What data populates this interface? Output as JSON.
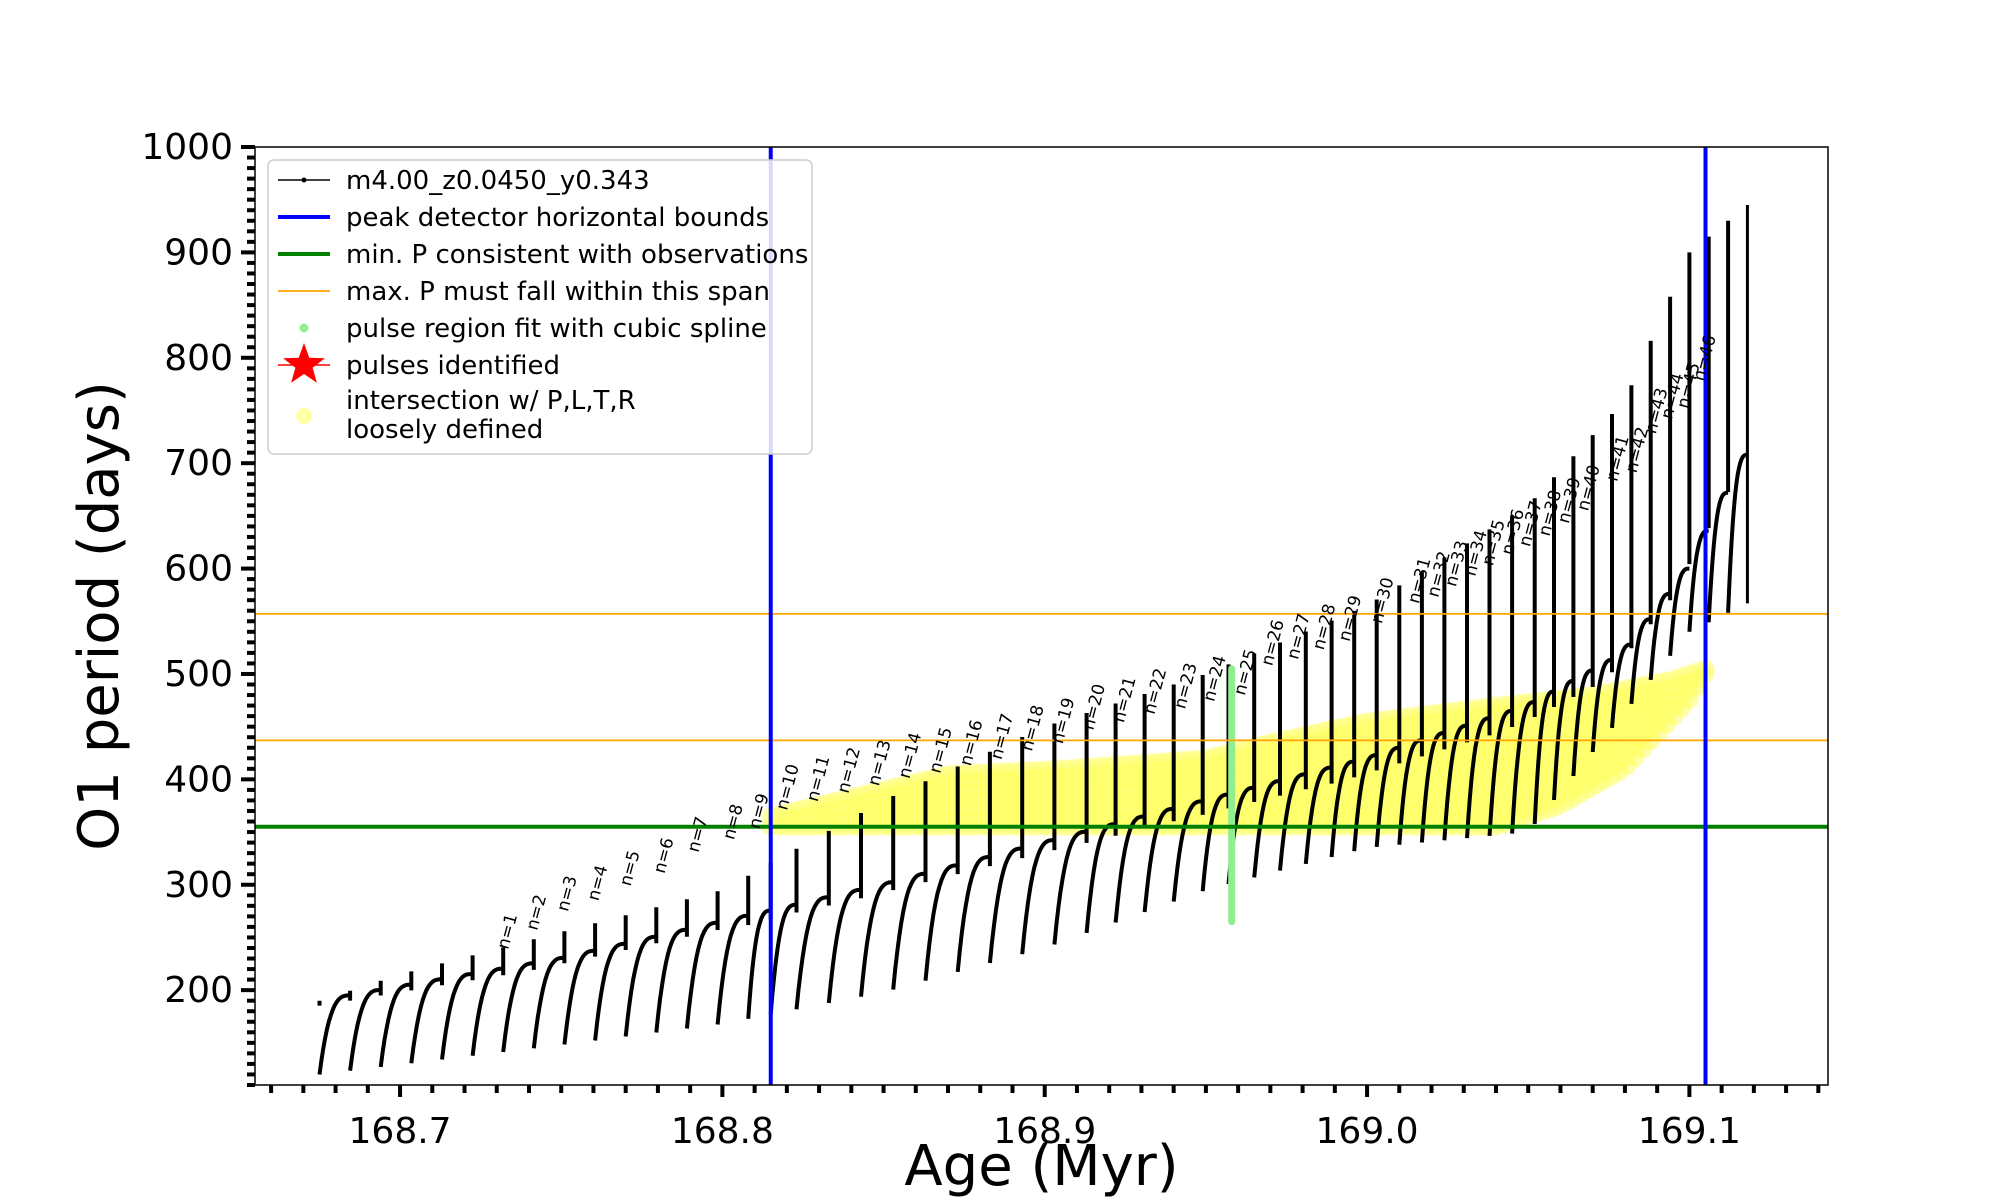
{
  "chart_data": {
    "type": "scatter",
    "xlabel": "Age (Myr)",
    "ylabel": "O1 period (days)",
    "xlim": [
      168.655,
      169.143
    ],
    "ylim": [
      110,
      1000
    ],
    "x_ticks": [
      168.7,
      168.8,
      168.9,
      169.0,
      169.1
    ],
    "x_tick_labels": [
      "168.7",
      "168.8",
      "168.9",
      "169.0",
      "169.1"
    ],
    "y_ticks": [
      200,
      300,
      400,
      500,
      600,
      700,
      800,
      900,
      1000
    ],
    "y_tick_labels": [
      "200",
      "300",
      "400",
      "500",
      "600",
      "700",
      "800",
      "900",
      "1000"
    ],
    "legend_position": "top-left",
    "legend": [
      {
        "label": "m4.00_z0.0450_y0.343",
        "marker": "line-dot",
        "color": "#000000"
      },
      {
        "label": "peak detector horizontal bounds",
        "marker": "thick-line",
        "color": "#0000ff"
      },
      {
        "label": "min. P consistent with observations",
        "marker": "thick-line",
        "color": "#008000"
      },
      {
        "label": "max. P must fall within this span",
        "marker": "thin-line",
        "color": "#ffa500"
      },
      {
        "label": "pulse region fit with cubic spline",
        "marker": "dot",
        "color": "#90ee90"
      },
      {
        "label": "pulses identified",
        "marker": "star",
        "color": "#ff0000"
      },
      {
        "label": "intersection w/ P,L,T,R",
        "label2": "loosely defined",
        "marker": "circle",
        "color": "#ffff66"
      }
    ],
    "vertical_lines": [
      {
        "x": 168.815,
        "color": "#0000ff",
        "name": "peak detector horizontal bounds"
      },
      {
        "x": 169.105,
        "color": "#0000ff",
        "name": "peak detector horizontal bounds"
      }
    ],
    "horizontal_lines": [
      {
        "y": 355,
        "color": "#008000",
        "name": "min. P consistent with observations"
      },
      {
        "y": 437,
        "color": "#ffa500",
        "name": "max. P must fall within this span"
      },
      {
        "y": 557,
        "color": "#ffa500",
        "name": "max. P must fall within this span"
      }
    ],
    "track_series": {
      "name": "m4.00_z0.0450_y0.343",
      "color": "#000000",
      "x_start": 168.675,
      "x_end": 169.12,
      "pulse_ages": [
        168.675,
        168.6845,
        168.694,
        168.7035,
        168.713,
        168.7225,
        168.732,
        168.7415,
        168.751,
        168.7605,
        168.77,
        168.7795,
        168.789,
        168.7985,
        168.808,
        168.815,
        168.823,
        168.833,
        168.843,
        168.853,
        168.863,
        168.873,
        168.883,
        168.893,
        168.903,
        168.913,
        168.922,
        168.931,
        168.94,
        168.949,
        168.957,
        168.965,
        168.973,
        168.981,
        168.989,
        168.996,
        169.003,
        169.01,
        169.017,
        169.024,
        169.031,
        169.038,
        169.045,
        169.052,
        169.058,
        169.064,
        169.07,
        169.076,
        169.082,
        169.088,
        169.094,
        169.1,
        169.106,
        169.112,
        169.118
      ],
      "baseline": [
        [
          168.675,
          190
        ],
        [
          168.75,
          230
        ],
        [
          168.8,
          265
        ],
        [
          168.85,
          300
        ],
        [
          168.9,
          340
        ],
        [
          168.95,
          380
        ],
        [
          169.0,
          420
        ],
        [
          169.05,
          470
        ],
        [
          169.08,
          520
        ],
        [
          169.1,
          600
        ],
        [
          169.12,
          720
        ]
      ],
      "pulse_min_base": [
        [
          168.675,
          120
        ],
        [
          168.75,
          148
        ],
        [
          168.8,
          168
        ],
        [
          168.85,
          198
        ],
        [
          168.9,
          240
        ],
        [
          168.95,
          295
        ],
        [
          169.0,
          335
        ],
        [
          169.05,
          350
        ],
        [
          169.1,
          540
        ],
        [
          169.12,
          570
        ]
      ],
      "pulse_max": [
        [
          168.675,
          190
        ],
        [
          168.7,
          215
        ],
        [
          168.75,
          255
        ],
        [
          168.8,
          295
        ],
        [
          168.85,
          380
        ],
        [
          168.9,
          450
        ],
        [
          168.95,
          500
        ],
        [
          169.0,
          565
        ],
        [
          169.05,
          660
        ],
        [
          169.08,
          760
        ],
        [
          169.1,
          900
        ],
        [
          169.12,
          950
        ]
      ]
    },
    "spline_series": {
      "name": "pulse region fit with cubic spline",
      "x": 168.958,
      "y_range": [
        265,
        505
      ],
      "color": "#90ee90"
    },
    "intersection_band": {
      "name": "intersection w/ P,L,T,R loosely defined",
      "color": "#ffff66",
      "upper": [
        [
          168.815,
          365
        ],
        [
          168.87,
          405
        ],
        [
          168.905,
          410
        ],
        [
          168.95,
          420
        ],
        [
          168.97,
          435
        ],
        [
          169.0,
          455
        ],
        [
          169.04,
          470
        ],
        [
          169.07,
          480
        ],
        [
          169.095,
          495
        ],
        [
          169.105,
          505
        ]
      ],
      "lower": [
        [
          168.815,
          355
        ],
        [
          168.87,
          355
        ],
        [
          168.905,
          355
        ],
        [
          168.95,
          355
        ],
        [
          169.0,
          355
        ],
        [
          169.04,
          355
        ],
        [
          169.06,
          375
        ],
        [
          169.08,
          410
        ],
        [
          169.1,
          475
        ],
        [
          169.105,
          500
        ]
      ]
    },
    "pulse_labels": [
      {
        "text": "n=1",
        "x": 168.7335,
        "y": 238
      },
      {
        "text": "n=2",
        "x": 168.7425,
        "y": 256
      },
      {
        "text": "n=3",
        "x": 168.752,
        "y": 274
      },
      {
        "text": "n=4",
        "x": 168.7615,
        "y": 284
      },
      {
        "text": "n=5",
        "x": 168.7715,
        "y": 298
      },
      {
        "text": "n=6",
        "x": 168.782,
        "y": 310
      },
      {
        "text": "n=7",
        "x": 168.7925,
        "y": 330
      },
      {
        "text": "n=8",
        "x": 168.8035,
        "y": 342
      },
      {
        "text": "n=9",
        "x": 168.8115,
        "y": 352
      },
      {
        "text": "n=10",
        "x": 168.82,
        "y": 370
      },
      {
        "text": "n=11",
        "x": 168.8295,
        "y": 378
      },
      {
        "text": "n=12",
        "x": 168.839,
        "y": 386
      },
      {
        "text": "n=13",
        "x": 168.8485,
        "y": 393
      },
      {
        "text": "n=14",
        "x": 168.858,
        "y": 400
      },
      {
        "text": "n=15",
        "x": 168.8675,
        "y": 405
      },
      {
        "text": "n=16",
        "x": 168.877,
        "y": 412
      },
      {
        "text": "n=17",
        "x": 168.8865,
        "y": 418
      },
      {
        "text": "n=18",
        "x": 168.896,
        "y": 426
      },
      {
        "text": "n=19",
        "x": 168.9055,
        "y": 433
      },
      {
        "text": "n=20",
        "x": 168.915,
        "y": 446
      },
      {
        "text": "n=21",
        "x": 168.9245,
        "y": 453
      },
      {
        "text": "n=22",
        "x": 168.934,
        "y": 461
      },
      {
        "text": "n=23",
        "x": 168.9435,
        "y": 466
      },
      {
        "text": "n=24",
        "x": 168.9525,
        "y": 473
      },
      {
        "text": "n=25",
        "x": 168.962,
        "y": 479
      },
      {
        "text": "n=26",
        "x": 168.9705,
        "y": 507
      },
      {
        "text": "n=27",
        "x": 168.9785,
        "y": 513
      },
      {
        "text": "n=28",
        "x": 168.9865,
        "y": 522
      },
      {
        "text": "n=29",
        "x": 168.9945,
        "y": 530
      },
      {
        "text": "n=30",
        "x": 169.0045,
        "y": 547
      },
      {
        "text": "n=31",
        "x": 169.016,
        "y": 566
      },
      {
        "text": "n=32",
        "x": 169.022,
        "y": 572
      },
      {
        "text": "n=33",
        "x": 169.0275,
        "y": 582
      },
      {
        "text": "n=34",
        "x": 169.0335,
        "y": 592
      },
      {
        "text": "n=35",
        "x": 169.039,
        "y": 602
      },
      {
        "text": "n=36",
        "x": 169.045,
        "y": 612
      },
      {
        "text": "n=37",
        "x": 169.0505,
        "y": 620
      },
      {
        "text": "n=38",
        "x": 169.0565,
        "y": 630
      },
      {
        "text": "n=39",
        "x": 169.0625,
        "y": 642
      },
      {
        "text": "n=40",
        "x": 169.0685,
        "y": 654
      },
      {
        "text": "n=41",
        "x": 169.0775,
        "y": 682
      },
      {
        "text": "n=42",
        "x": 169.0835,
        "y": 690
      },
      {
        "text": "n=43",
        "x": 169.0895,
        "y": 727
      },
      {
        "text": "n=44",
        "x": 169.0945,
        "y": 741
      },
      {
        "text": "n=45",
        "x": 169.0995,
        "y": 751
      },
      {
        "text": "n=46",
        "x": 169.1045,
        "y": 777
      }
    ]
  }
}
